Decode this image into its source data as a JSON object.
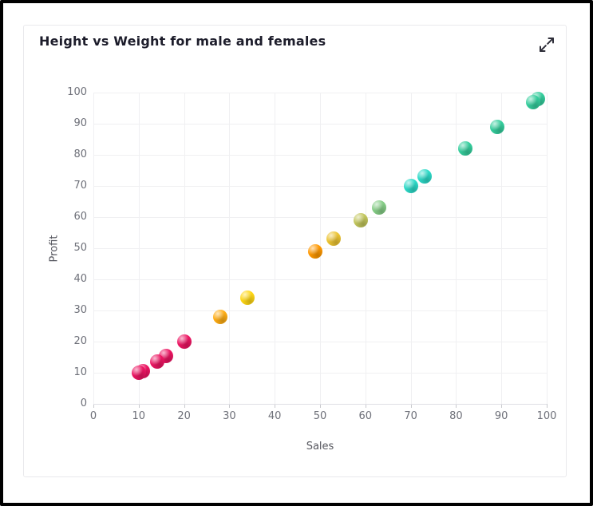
{
  "header": {
    "title": "Height vs Weight for male and females",
    "expand_icon": "expand-icon"
  },
  "chart_data": {
    "type": "scatter",
    "title": "Height vs Weight for male and females",
    "xlabel": "Sales",
    "ylabel": "Profit",
    "xlim": [
      0,
      100
    ],
    "ylim": [
      0,
      100
    ],
    "x_ticks": [
      0,
      10,
      20,
      30,
      40,
      50,
      60,
      70,
      80,
      90,
      100
    ],
    "y_ticks": [
      0,
      10,
      20,
      30,
      40,
      50,
      60,
      70,
      80,
      90,
      100
    ],
    "grid": true,
    "legend": "none",
    "marker_style": "3d-sphere",
    "colors": {
      "tick_text": "#6e7079",
      "grid_line": "#f0f0f2",
      "axis_line": "#dfdfe5"
    },
    "points": [
      {
        "x": 10,
        "y": 10,
        "color": "#ec1562"
      },
      {
        "x": 11,
        "y": 10.5,
        "color": "#ec1562"
      },
      {
        "x": 14,
        "y": 13.5,
        "color": "#ec1562"
      },
      {
        "x": 16,
        "y": 15.5,
        "color": "#ec1562"
      },
      {
        "x": 20,
        "y": 20,
        "color": "#ec1562"
      },
      {
        "x": 28,
        "y": 28,
        "color": "#ffad14"
      },
      {
        "x": 34,
        "y": 34,
        "color": "#ffd715"
      },
      {
        "x": 49,
        "y": 49,
        "color": "#ff9800"
      },
      {
        "x": 53,
        "y": 53,
        "color": "#ecc433"
      },
      {
        "x": 59,
        "y": 59,
        "color": "#c2c65c"
      },
      {
        "x": 63,
        "y": 63,
        "color": "#86ce87"
      },
      {
        "x": 70,
        "y": 70,
        "color": "#2cdac8"
      },
      {
        "x": 73,
        "y": 73,
        "color": "#2cdac8"
      },
      {
        "x": 82,
        "y": 82,
        "color": "#35ce9d"
      },
      {
        "x": 89,
        "y": 89,
        "color": "#35ce9d"
      },
      {
        "x": 97,
        "y": 97,
        "color": "#35ce9d"
      },
      {
        "x": 98,
        "y": 98,
        "color": "#35ce9d"
      }
    ]
  }
}
